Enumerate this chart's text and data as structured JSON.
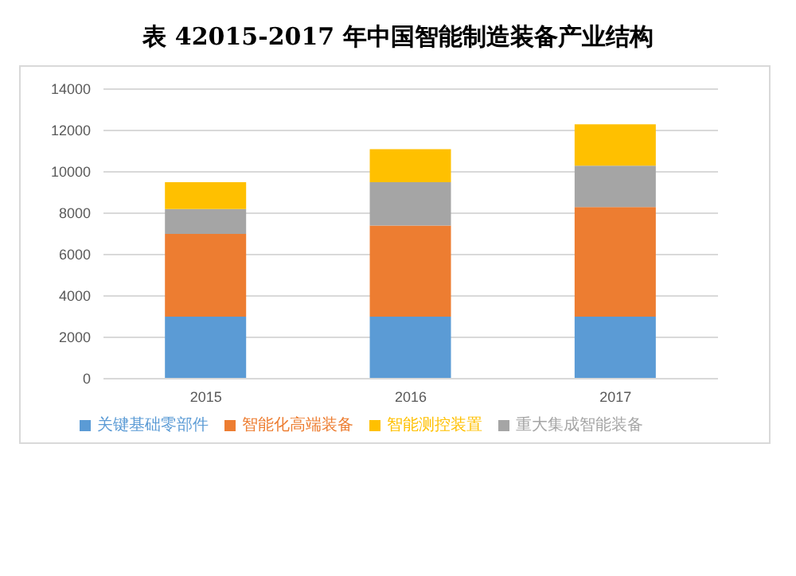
{
  "chart_data": {
    "type": "bar",
    "title": "表  42015-2017 年中国智能制造装备产业结构",
    "categories": [
      "2015",
      "2016",
      "2017"
    ],
    "stacked": true,
    "series": [
      {
        "name": "关键基础零部件",
        "color": "#5b9bd5",
        "values": [
          3000,
          3000,
          3000
        ]
      },
      {
        "name": "智能化高端装备",
        "color": "#ed7d31",
        "values": [
          4000,
          4400,
          5300
        ]
      },
      {
        "name": "重大集成智能装备",
        "color": "#a5a5a5",
        "values": [
          1200,
          2100,
          2000
        ]
      },
      {
        "name": "智能测控装置",
        "color": "#ffc000",
        "values": [
          1300,
          1600,
          2000
        ]
      }
    ],
    "ylim": [
      0,
      14000
    ],
    "yticks": [
      0,
      2000,
      4000,
      6000,
      8000,
      10000,
      12000,
      14000
    ],
    "grid": "y",
    "legend": "bottom"
  }
}
